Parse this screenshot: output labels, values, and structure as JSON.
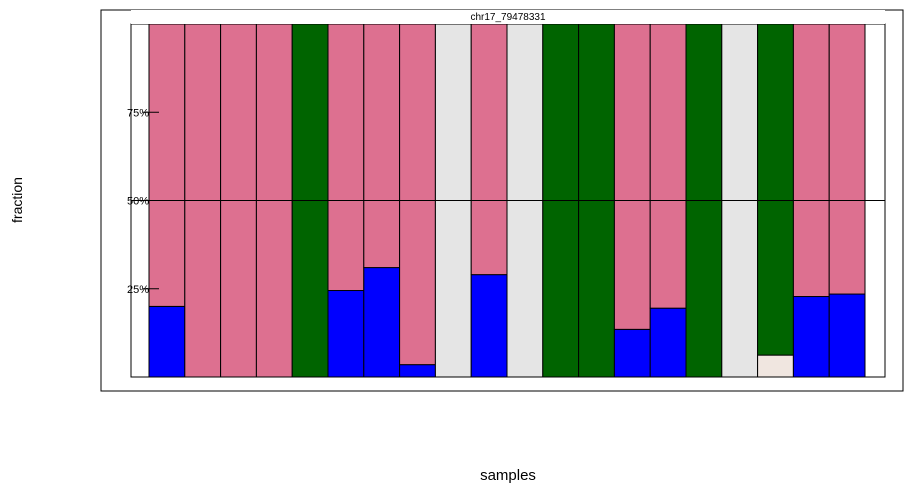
{
  "chart_data": {
    "type": "bar",
    "stacked": true,
    "title": "chr17_79478331",
    "xlabel": "samples",
    "ylabel": "fraction",
    "ylim": [
      0,
      1
    ],
    "yticks": [
      {
        "value": 0.25,
        "label": "25%"
      },
      {
        "value": 0.5,
        "label": "50%"
      },
      {
        "value": 0.75,
        "label": "75%"
      }
    ],
    "reference_line": 0.5,
    "grid": false,
    "legend": "none",
    "category_count": 20,
    "colors": {
      "blue": "#0000ff",
      "pink": "#dd7090",
      "green": "#006400",
      "light_gray": "#e5e5e5",
      "linen": "#f0e6e0"
    },
    "series": [
      {
        "color": "blue",
        "values": [
          0.2,
          0,
          0,
          0,
          0,
          0.245,
          0.31,
          0.035,
          0,
          0.29,
          0,
          0,
          0,
          0.135,
          0.195,
          0,
          0,
          0,
          0.228,
          0.235
        ]
      },
      {
        "color": "linen",
        "values": [
          0,
          0,
          0,
          0,
          0,
          0,
          0,
          0,
          0,
          0,
          0,
          0,
          0,
          0,
          0,
          0,
          0,
          0.062,
          0,
          0
        ]
      },
      {
        "color": "pink",
        "values": [
          0.8,
          1,
          1,
          1,
          0,
          0.755,
          0.69,
          0.965,
          0,
          0.71,
          0,
          0,
          0,
          0.865,
          0.805,
          0,
          0,
          0,
          0.772,
          0.765
        ]
      },
      {
        "color": "green",
        "values": [
          0,
          0,
          0,
          0,
          1,
          0,
          0,
          0,
          0,
          0,
          0,
          1,
          1,
          0,
          0,
          1,
          0,
          0.938,
          0,
          0
        ]
      },
      {
        "color": "light_gray",
        "values": [
          0,
          0,
          0,
          0,
          0,
          0,
          0,
          0,
          1,
          0,
          1,
          0,
          0,
          0,
          0,
          0,
          1,
          0,
          0,
          0
        ]
      }
    ]
  }
}
